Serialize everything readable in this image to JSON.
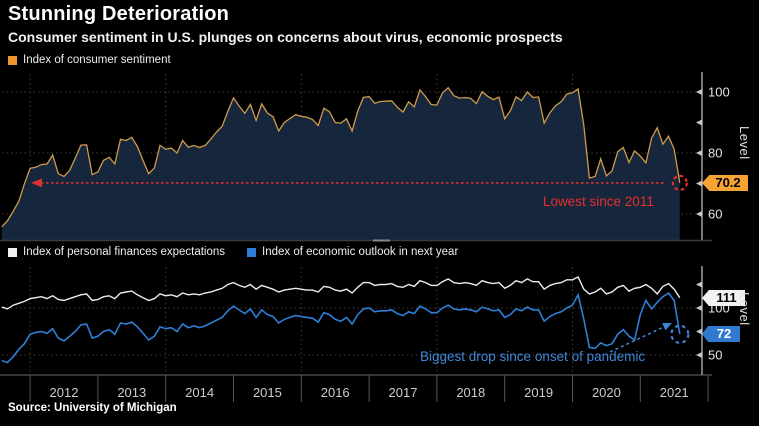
{
  "header": {
    "title": "Stunning Deterioration",
    "subtitle": "Consumer sentiment in U.S. plunges on concerns about virus, economic prospects"
  },
  "source": "Source: University of Michigan",
  "x_axis": {
    "years": [
      "2012",
      "2013",
      "2014",
      "2015",
      "2016",
      "2017",
      "2018",
      "2019",
      "2020",
      "2021"
    ],
    "gridline_years": [
      2012,
      2014,
      2016,
      2018,
      2020
    ]
  },
  "top_panel": {
    "legend": [
      {
        "label": "Index of consumer sentiment",
        "swatch_color": "#f09432"
      }
    ],
    "y_axis_label": "Level",
    "end_badge": {
      "value": "70.2",
      "bg": "#f5a333",
      "fg": "#000000"
    },
    "annotation": {
      "text": "Lowest since 2011",
      "color": "#e33029"
    }
  },
  "bottom_panel": {
    "legend": [
      {
        "label": "Index of personal finances expectations",
        "swatch_color": "#f0f0f0"
      },
      {
        "label": "Index of economic outlook in next year",
        "swatch_color": "#2e7fd6"
      }
    ],
    "y_axis_label": "Level",
    "end_badges": [
      {
        "value": "111",
        "bg": "#f2f2f2",
        "fg": "#000000"
      },
      {
        "value": "72",
        "bg": "#3079cf",
        "fg": "#ffffff"
      }
    ],
    "annotation": {
      "text": "Biggest drop since onset of pandemic",
      "color": "#3f87d8"
    }
  },
  "colors": {
    "background": "#000000",
    "sentiment_line": "#cf9b4a",
    "sentiment_fill": "#16263c",
    "finances_line": "#ececec",
    "outlook_line": "#2e7fd6",
    "red_accent": "#d9312b",
    "gridline": "#3f3f3f",
    "axis": "#c8c8c8",
    "x_axis": "#6a6a6a",
    "tick_label": "#e3e3e3",
    "x_label": "#cccccc"
  },
  "chart_data": [
    {
      "type": "area",
      "title": "Index of consumer sentiment",
      "x_period": "monthly, Aug 2011 - Aug 2021",
      "x_range": [
        2011.583,
        2021.583
      ],
      "ylabel": "Level",
      "ylim": [
        51,
        106
      ],
      "yticks": [
        60,
        70,
        80,
        90,
        100
      ],
      "ytick_labels": [
        60,
        80,
        100
      ],
      "grid": "dashed",
      "end_value": 70.2,
      "annotation": {
        "text": "Lowest since 2011",
        "level": 70.2
      },
      "values": [
        55.8,
        57.8,
        60.9,
        64.1,
        69.9,
        75.0,
        75.3,
        76.2,
        76.4,
        79.3,
        73.2,
        72.3,
        74.3,
        78.3,
        82.6,
        82.7,
        72.9,
        73.8,
        77.6,
        78.6,
        76.4,
        84.5,
        84.1,
        85.1,
        82.1,
        77.5,
        73.2,
        75.1,
        82.5,
        81.2,
        81.6,
        80.0,
        84.1,
        81.9,
        82.5,
        81.8,
        82.5,
        84.6,
        86.9,
        88.8,
        93.6,
        98.1,
        95.4,
        93.0,
        95.9,
        90.7,
        96.1,
        93.1,
        91.9,
        87.2,
        90.0,
        91.3,
        92.6,
        92.0,
        91.7,
        91.0,
        89.0,
        94.7,
        93.5,
        90.0,
        89.8,
        91.2,
        87.2,
        93.8,
        98.2,
        98.5,
        96.3,
        96.9,
        97.0,
        97.1,
        95.0,
        93.4,
        96.8,
        95.1,
        100.7,
        98.5,
        95.9,
        95.7,
        99.7,
        101.4,
        98.8,
        98.0,
        98.2,
        97.9,
        96.2,
        100.1,
        98.6,
        97.5,
        98.3,
        91.2,
        93.8,
        98.4,
        97.2,
        100.0,
        98.2,
        98.4,
        89.8,
        93.2,
        95.5,
        96.8,
        99.3,
        99.8,
        101.0,
        89.1,
        71.8,
        72.3,
        78.1,
        72.5,
        74.1,
        80.4,
        81.8,
        76.9,
        80.7,
        79.0,
        76.8,
        84.9,
        88.3,
        82.9,
        85.5,
        81.2,
        70.2
      ]
    },
    {
      "type": "line",
      "x_period": "monthly, Aug 2011 - Aug 2021",
      "x_range": [
        2011.583,
        2021.583
      ],
      "ylabel": "Level",
      "ylim": [
        29,
        142
      ],
      "yticks": [
        50,
        75,
        100,
        125
      ],
      "ytick_labels": [
        50,
        100
      ],
      "grid": "dashed",
      "annotation": {
        "text": "Biggest drop since onset of pandemic"
      },
      "series": [
        {
          "name": "Index of personal finances expectations",
          "end_value": 111,
          "values": [
            101,
            99,
            103,
            105,
            107,
            110,
            111,
            112,
            110,
            113,
            109,
            108,
            110,
            112,
            114,
            115,
            108,
            109,
            112,
            113,
            110,
            116,
            117,
            118,
            114,
            111,
            108,
            110,
            115,
            113,
            114,
            112,
            116,
            114,
            115,
            114,
            116,
            117,
            119,
            121,
            125,
            127,
            124,
            122,
            125,
            120,
            124,
            122,
            120,
            117,
            119,
            120,
            121,
            120,
            119,
            119,
            117,
            123,
            122,
            119,
            118,
            120,
            116,
            122,
            127,
            127,
            124,
            125,
            125,
            126,
            123,
            122,
            125,
            123,
            129,
            127,
            124,
            124,
            128,
            131,
            127,
            126,
            127,
            126,
            124,
            129,
            127,
            126,
            127,
            121,
            124,
            129,
            127,
            131,
            128,
            128,
            120,
            124,
            126,
            127,
            130,
            130,
            133,
            120,
            115,
            117,
            121,
            115,
            117,
            122,
            124,
            118,
            121,
            122,
            125,
            121,
            115,
            123,
            126,
            120,
            111
          ]
        },
        {
          "name": "Index of economic outlook in next year",
          "end_value": 72,
          "values": [
            44,
            42,
            48,
            56,
            62,
            72,
            74,
            75,
            73,
            78,
            68,
            65,
            70,
            75,
            82,
            83,
            68,
            70,
            75,
            77,
            72,
            84,
            83,
            85,
            80,
            73,
            66,
            70,
            80,
            78,
            79,
            75,
            83,
            79,
            81,
            79,
            81,
            84,
            87,
            90,
            97,
            102,
            98,
            94,
            99,
            90,
            98,
            93,
            91,
            84,
            88,
            90,
            92,
            91,
            90,
            89,
            85,
            95,
            93,
            88,
            86,
            90,
            83,
            93,
            99,
            100,
            96,
            97,
            97,
            98,
            94,
            92,
            96,
            94,
            102,
            99,
            95,
            95,
            100,
            103,
            99,
            98,
            99,
            98,
            96,
            101,
            99,
            97,
            98,
            90,
            93,
            99,
            97,
            101,
            98,
            98,
            86,
            91,
            94,
            96,
            100,
            103,
            114,
            88,
            58,
            57,
            63,
            60,
            62,
            72,
            77,
            70,
            66,
            93,
            108,
            99,
            106,
            112,
            116,
            108,
            72
          ]
        }
      ]
    }
  ]
}
